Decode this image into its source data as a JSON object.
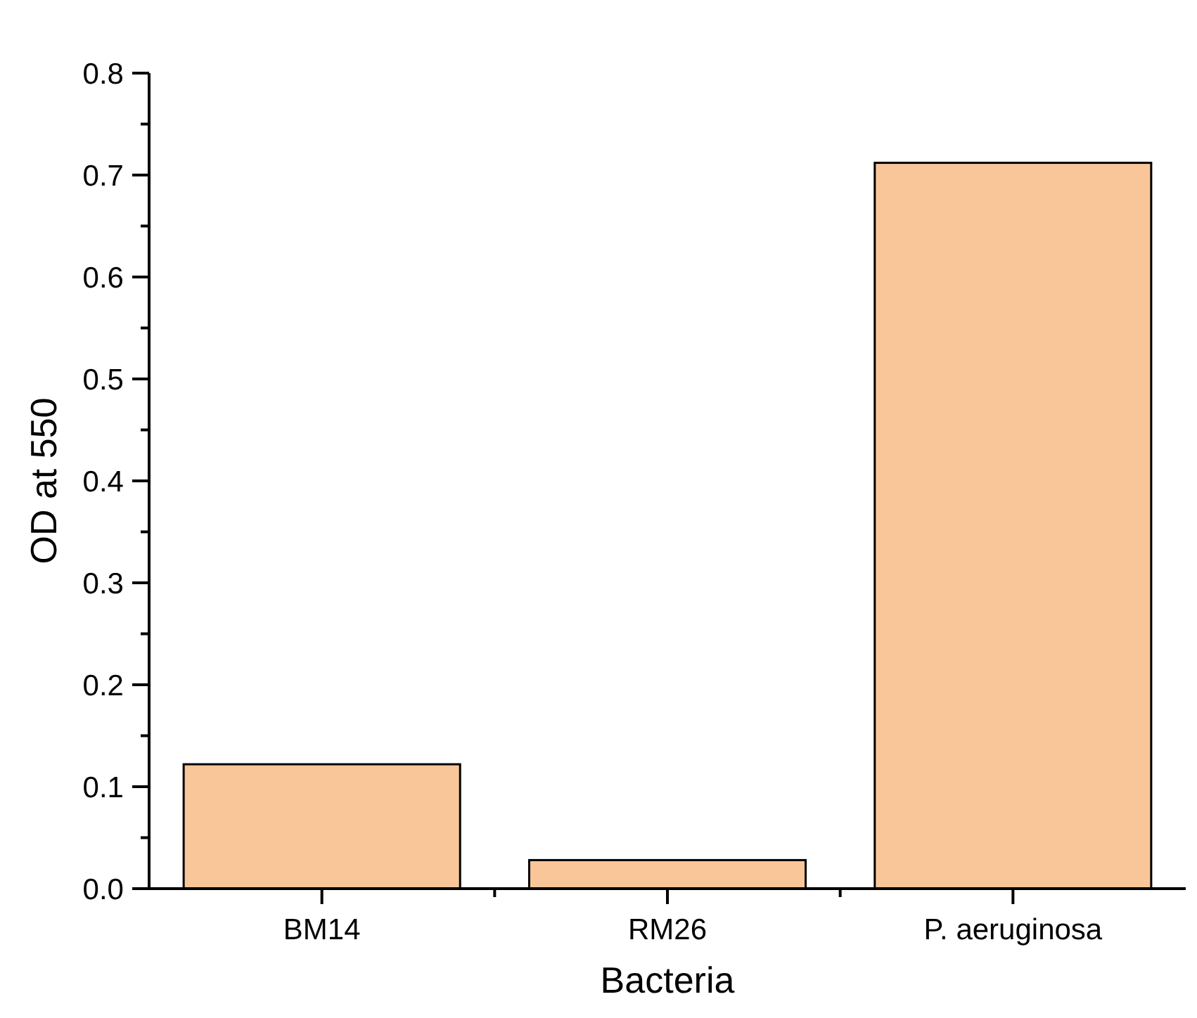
{
  "chart_data": {
    "type": "bar",
    "xlabel": "Bacteria",
    "ylabel": "OD at 550",
    "categories": [
      "BM14",
      "RM26",
      "P. aeruginosa"
    ],
    "values": [
      0.122,
      0.028,
      0.712
    ],
    "color": "#f9c69a",
    "ylim": [
      0,
      0.8
    ],
    "yticks": [
      {
        "value": 0,
        "label": "0.0"
      },
      0.1,
      0.2,
      0.3,
      0.4,
      0.5,
      0.6,
      0.7,
      0.8
    ]
  }
}
